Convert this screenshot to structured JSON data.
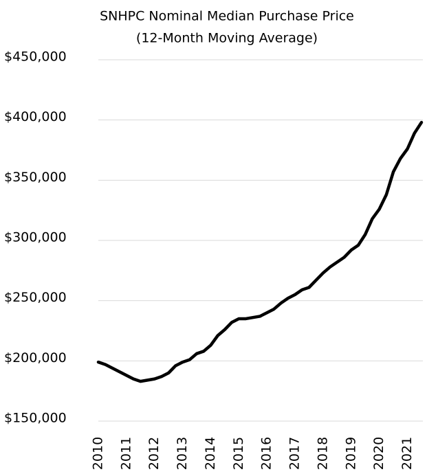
{
  "chart_data": {
    "type": "line",
    "title": "SNHPC Nominal Median Purchase Price",
    "subtitle": "(12-Month Moving Average)",
    "x": [
      2010,
      2010.25,
      2010.5,
      2010.75,
      2011,
      2011.25,
      2011.5,
      2011.75,
      2012,
      2012.25,
      2012.5,
      2012.75,
      2013,
      2013.25,
      2013.5,
      2013.75,
      2014,
      2014.25,
      2014.5,
      2014.75,
      2015,
      2015.25,
      2015.5,
      2015.75,
      2016,
      2016.25,
      2016.5,
      2016.75,
      2017,
      2017.25,
      2017.5,
      2017.75,
      2018,
      2018.25,
      2018.5,
      2018.75,
      2019,
      2019.25,
      2019.5,
      2019.75,
      2020,
      2020.25,
      2020.5,
      2020.75,
      2021,
      2021.25,
      2021.5
    ],
    "series": [
      {
        "name": "Median Purchase Price",
        "color": "#000000",
        "values": [
          199000,
          197000,
          194000,
          191000,
          188000,
          185000,
          183000,
          184000,
          185000,
          187000,
          190000,
          196000,
          199000,
          201000,
          206000,
          208000,
          213000,
          221000,
          226000,
          232000,
          235000,
          235000,
          236000,
          237000,
          240000,
          243000,
          248000,
          252000,
          255000,
          259000,
          261000,
          267000,
          273000,
          278000,
          282000,
          286000,
          292000,
          296000,
          305000,
          318000,
          326000,
          338000,
          357000,
          368000,
          376000,
          389000,
          398000
        ]
      }
    ],
    "xlim": [
      2010,
      2021.55
    ],
    "xticks": [
      2010,
      2011,
      2012,
      2013,
      2014,
      2015,
      2016,
      2017,
      2018,
      2019,
      2020,
      2021
    ],
    "ylim": [
      150000,
      450000
    ],
    "yticks": [
      {
        "value": 150000,
        "label": "$150,000"
      },
      {
        "value": 200000,
        "label": "$200,000"
      },
      {
        "value": 250000,
        "label": "$250,000"
      },
      {
        "value": 300000,
        "label": "$300,000"
      },
      {
        "value": 350000,
        "label": "$350,000"
      },
      {
        "value": 400000,
        "label": "$400,000"
      },
      {
        "value": 450000,
        "label": "$450,000"
      }
    ],
    "grid": true
  }
}
